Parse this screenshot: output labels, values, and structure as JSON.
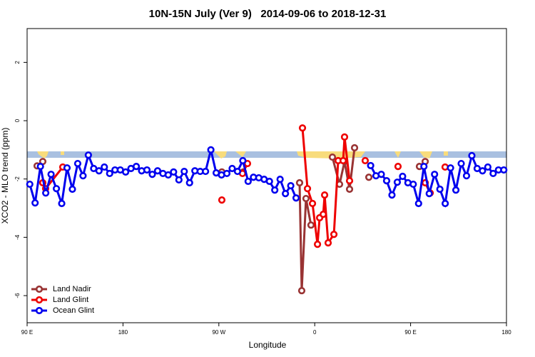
{
  "chart_data": {
    "type": "line",
    "title": "10N-15N July (Ver 9)   2014-09-06 to 2018-12-31",
    "xlabel": "Longitude",
    "ylabel": "XCO2 - MLO trend (ppm)",
    "xlim": [
      90,
      540
    ],
    "ylim": [
      -6.93,
      3.16
    ],
    "xticks": [
      {
        "value": 90,
        "label": "90 E"
      },
      180,
      {
        "value": 270,
        "label": "90 W"
      },
      {
        "value": 360,
        "label": "0"
      },
      {
        "value": 450,
        "label": "90 E"
      },
      {
        "value": 540,
        "label": "180"
      }
    ],
    "yticks": [
      2,
      0,
      -2,
      -4,
      -6
    ],
    "legend": "bottom-left",
    "series": [
      {
        "name": "Land Nadir",
        "color": "#993333",
        "x": [
          99.4,
          104.7,
          null,
          272.8,
          null,
          292.9,
          null,
          345.8,
          347.8,
          351.8,
          356.5,
          null,
          376.6,
          383.3,
          388,
          392.7,
          397.4,
          null,
          410.8,
          null,
          458.3,
          463.7
        ],
        "values": [
          -1.55,
          -1.4,
          null,
          -1.76,
          null,
          -1.76,
          null,
          -2.13,
          -5.83,
          -2.67,
          -3.58,
          null,
          -1.25,
          -2.18,
          -1.4,
          -2.35,
          -0.93,
          null,
          -1.94,
          null,
          -1.57,
          -1.4
        ]
      },
      {
        "name": "Land Glint",
        "color": "#ee0000",
        "x": [
          104.7,
          107.4,
          123.5,
          null,
          272.8,
          null,
          292.2,
          296.9,
          null,
          348.5,
          353.2,
          357.9,
          362.6,
          364.6,
          368,
          369.3,
          372.6,
          378,
          382,
          386.7,
          388,
          392.7,
          null,
          407.4,
          null,
          438.2,
          null,
          463.7,
          468.4,
          null,
          482.4
        ],
        "values": [
          -2.13,
          -2.33,
          -1.59,
          null,
          -2.72,
          null,
          -1.81,
          -1.47,
          null,
          -0.25,
          -2.33,
          -2.84,
          -4.24,
          -3.33,
          -3.21,
          -2.55,
          -4.19,
          -3.9,
          -1.37,
          -1.37,
          -0.56,
          -2.06,
          null,
          -1.37,
          null,
          -1.57,
          null,
          -2.13,
          -2.48,
          null,
          -1.59
        ]
      },
      {
        "name": "Ocean Glint",
        "color": "#0000ee",
        "x": [
          92.5,
          97.5,
          102.5,
          107.5,
          112.5,
          117.5,
          122.5,
          127.5,
          132.5,
          137.5,
          142.5,
          147.5,
          152.5,
          157.5,
          162.5,
          167.5,
          172.5,
          177.5,
          182.5,
          187.5,
          192.5,
          197.5,
          202.5,
          207.5,
          212.5,
          217.5,
          222.5,
          227.5,
          232.5,
          237.5,
          242.5,
          247.5,
          252.5,
          257.5,
          262.5,
          267.5,
          272.5,
          277.5,
          282.5,
          287.5,
          292.5,
          297.5,
          302.5,
          307.5,
          312.5,
          317.5,
          322.5,
          327.5,
          332.5,
          337.5,
          342.5,
          null,
          412.5,
          417.5,
          422.5,
          427.5,
          432.5,
          437.5,
          442.5,
          447.5,
          452.5,
          457.5,
          462.5,
          467.5,
          472.5,
          477.5,
          482.5,
          487.5,
          492.5,
          497.5,
          502.5,
          507.5,
          512.5,
          517.5,
          522.5,
          527.5,
          532.5,
          537.5
        ],
        "values": [
          -2.18,
          -2.82,
          -1.57,
          -2.48,
          -1.84,
          -2.33,
          -2.84,
          -1.62,
          -2.35,
          -1.47,
          -1.89,
          -1.18,
          -1.64,
          -1.72,
          -1.59,
          -1.81,
          -1.69,
          -1.69,
          -1.76,
          -1.64,
          -1.57,
          -1.72,
          -1.69,
          -1.84,
          -1.72,
          -1.81,
          -1.86,
          -1.76,
          -2.03,
          -1.74,
          -2.13,
          -1.72,
          -1.74,
          -1.74,
          -1.0,
          -1.79,
          -1.86,
          -1.81,
          -1.64,
          -1.74,
          -1.37,
          -2.08,
          -1.94,
          -1.96,
          -2.01,
          -2.08,
          -2.38,
          -2.01,
          -2.5,
          -2.23,
          -2.65,
          null,
          -1.54,
          -1.89,
          -1.84,
          -2.06,
          -2.55,
          -2.11,
          -1.91,
          -2.13,
          -2.18,
          -2.84,
          -1.57,
          -2.5,
          -1.84,
          -2.35,
          -2.84,
          -1.62,
          -2.38,
          -1.47,
          -1.89,
          -1.2,
          -1.64,
          -1.72,
          -1.59,
          -1.81,
          -1.69,
          -1.69
        ]
      }
    ]
  }
}
